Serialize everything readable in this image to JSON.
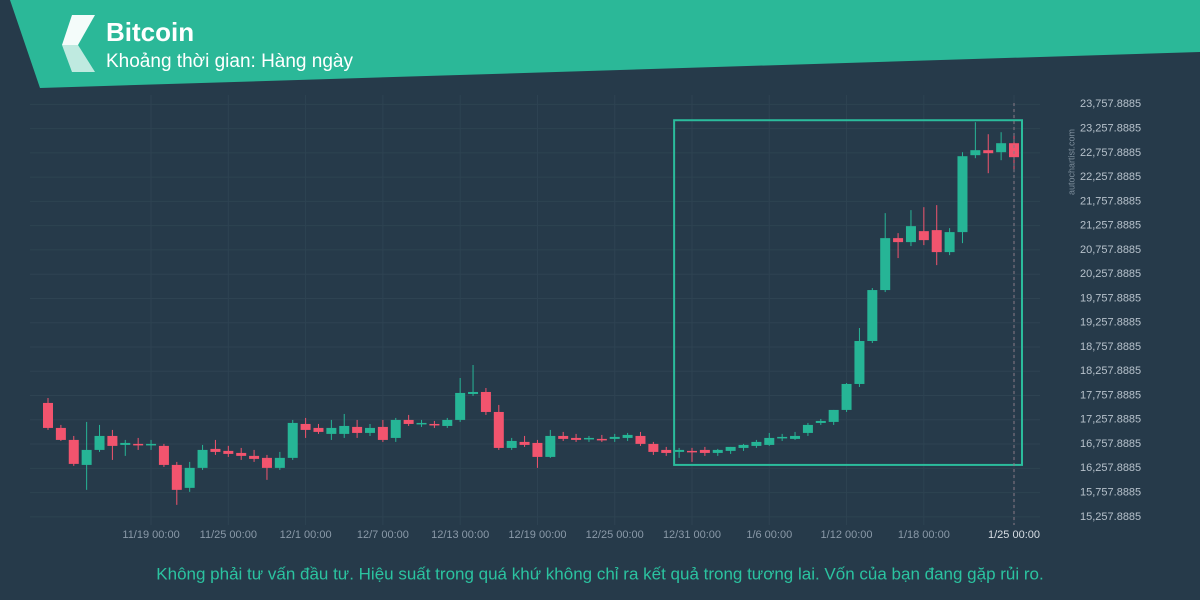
{
  "chart_data": {
    "type": "candlestick",
    "title": "Bitcoin",
    "subtitle": "Khoảng thời gian: Hàng ngày",
    "watermark": "autochartist.com",
    "disclaimer": "Không phải tư vấn đầu tư. Hiệu suất trong quá khứ không chỉ ra kết quả trong tương lai. Vốn của bạn đang gặp rủi ro.",
    "categories": [
      null,
      null,
      null,
      null,
      null,
      null,
      null,
      null,
      "11/19 00:00",
      null,
      null,
      null,
      null,
      null,
      "11/25 00:00",
      null,
      null,
      null,
      null,
      null,
      "12/1 00:00",
      null,
      null,
      null,
      null,
      null,
      "12/7 00:00",
      null,
      null,
      null,
      null,
      null,
      "12/13 00:00",
      null,
      null,
      null,
      null,
      null,
      "12/19 00:00",
      null,
      null,
      null,
      null,
      null,
      "12/25 00:00",
      null,
      null,
      null,
      null,
      null,
      "12/31 00:00",
      null,
      null,
      null,
      null,
      null,
      "1/6 00:00",
      null,
      null,
      null,
      null,
      null,
      "1/12 00:00",
      null,
      null,
      null,
      null,
      null,
      "1/18 00:00",
      null,
      null,
      null,
      null,
      null,
      null,
      "1/25 00:00"
    ],
    "open": [
      17605,
      17090,
      16843,
      16328,
      16637,
      16925,
      16740,
      16761,
      16740,
      16720,
      16328,
      15855,
      16267,
      16658,
      16617,
      16575,
      16514,
      16473,
      16267,
      16473,
      17172,
      17090,
      16967,
      16967,
      17111,
      16987,
      17111,
      16884,
      17255,
      17172,
      17172,
      17131,
      17255,
      17790,
      17831,
      17419,
      16678,
      16802,
      16781,
      16493,
      16925,
      16884,
      16864,
      16864,
      16864,
      16884,
      16925,
      16761,
      16637,
      16596,
      16617,
      16637,
      16575,
      16617,
      16678,
      16720,
      16740,
      16884,
      16864,
      16987,
      17193,
      17214,
      17461,
      17996,
      18881,
      19931,
      21001,
      20919,
      21145,
      21166,
      20713,
      21125,
      22710,
      22813,
      22772,
      22957
    ],
    "high": [
      17708,
      17152,
      16925,
      17214,
      17152,
      17049,
      16843,
      16884,
      16843,
      16761,
      16390,
      16390,
      16740,
      16843,
      16720,
      16678,
      16637,
      16534,
      16596,
      17255,
      17296,
      17172,
      17255,
      17378,
      17255,
      17172,
      17255,
      17296,
      17358,
      17255,
      17234,
      17296,
      18119,
      18387,
      17913,
      17564,
      16884,
      16925,
      16843,
      17049,
      17008,
      16967,
      16925,
      16946,
      16967,
      16987,
      17008,
      16802,
      16699,
      16678,
      16678,
      16699,
      16658,
      16699,
      16761,
      16843,
      16987,
      16967,
      17008,
      17193,
      17275,
      17461,
      18016,
      19149,
      19972,
      21516,
      21104,
      21578,
      21639,
      21681,
      21207,
      22772,
      23389,
      23142,
      23183,
      23163
    ],
    "low": [
      17049,
      16822,
      16308,
      15814,
      16596,
      16431,
      16514,
      16637,
      16637,
      16287,
      15505,
      15773,
      16225,
      16534,
      16493,
      16431,
      16390,
      16020,
      16225,
      16431,
      16884,
      16967,
      16843,
      16884,
      16884,
      16925,
      16802,
      16802,
      17131,
      17111,
      17090,
      17090,
      17214,
      17749,
      17358,
      16637,
      16637,
      16699,
      16267,
      16473,
      16822,
      16802,
      16802,
      16802,
      16802,
      16822,
      16720,
      16534,
      16514,
      16473,
      16390,
      16514,
      16514,
      16555,
      16617,
      16678,
      16720,
      16822,
      16843,
      16925,
      17152,
      17152,
      17419,
      17934,
      18840,
      19890,
      20590,
      20837,
      20857,
      20445,
      20651,
      20898,
      22648,
      22339,
      22607,
      22360
    ],
    "close": [
      17090,
      16843,
      16349,
      16637,
      16925,
      16720,
      16781,
      16740,
      16761,
      16328,
      15814,
      16267,
      16637,
      16596,
      16555,
      16514,
      16452,
      16267,
      16473,
      17193,
      17049,
      17008,
      17090,
      17131,
      16987,
      17090,
      16843,
      17255,
      17172,
      17193,
      17152,
      17255,
      17811,
      17831,
      17419,
      16678,
      16822,
      16740,
      16493,
      16925,
      16864,
      16843,
      16884,
      16843,
      16905,
      16946,
      16761,
      16596,
      16575,
      16637,
      16596,
      16575,
      16637,
      16699,
      16740,
      16802,
      16884,
      16905,
      16925,
      17152,
      17234,
      17461,
      17996,
      18881,
      19931,
      21001,
      20919,
      21248,
      20960,
      20713,
      21125,
      22689,
      22813,
      22751,
      22957,
      22669
    ],
    "up_color": "#26b596",
    "down_color": "#f2546e",
    "highlight": {
      "start": 49,
      "end": 75,
      "low": 16328,
      "high": 23430,
      "color": "#2bbc9c"
    },
    "ylim": [
      15090,
      23950
    ],
    "yticks": [
      {
        "value": 15257.8885,
        "label": "15,257.8885"
      },
      {
        "value": 15757.8885,
        "label": "15,757.8885"
      },
      {
        "value": 16257.8885,
        "label": "16,257.8885"
      },
      {
        "value": 16757.8885,
        "label": "16,757.8885"
      },
      {
        "value": 17257.8885,
        "label": "17,257.8885"
      },
      {
        "value": 17757.8885,
        "label": "17,757.8885"
      },
      {
        "value": 18257.8885,
        "label": "18,257.8885"
      },
      {
        "value": 18757.8885,
        "label": "18,757.8885"
      },
      {
        "value": 19257.8885,
        "label": "19,257.8885"
      },
      {
        "value": 19757.8885,
        "label": "19,757.8885"
      },
      {
        "value": 20257.8885,
        "label": "20,257.8885"
      },
      {
        "value": 20757.8885,
        "label": "20,757.8885"
      },
      {
        "value": 21257.8885,
        "label": "21,257.8885"
      },
      {
        "value": 21757.8885,
        "label": "21,757.8885"
      },
      {
        "value": 22257.8885,
        "label": "22,257.8885"
      },
      {
        "value": 22757.8885,
        "label": "22,757.8885"
      },
      {
        "value": 23257.8885,
        "label": "23,257.8885"
      },
      {
        "value": 23757.8885,
        "label": "23,757.8885"
      }
    ],
    "grid": true
  }
}
